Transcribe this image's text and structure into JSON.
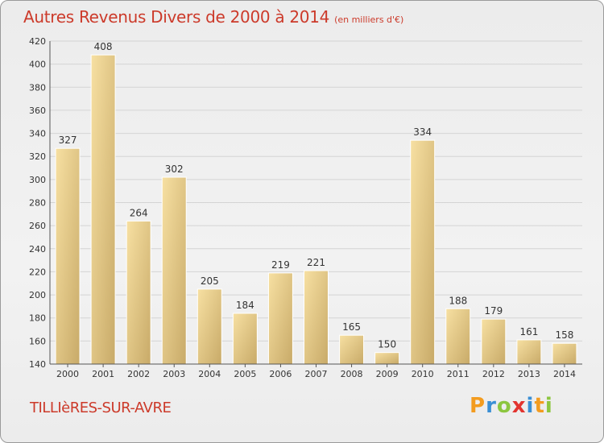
{
  "chart_data": {
    "type": "bar",
    "title": "Autres Revenus Divers de 2000 à 2014",
    "subtitle": "(en milliers d'€)",
    "categories": [
      "2000",
      "2001",
      "2002",
      "2003",
      "2004",
      "2005",
      "2006",
      "2007",
      "2008",
      "2009",
      "2010",
      "2011",
      "2012",
      "2013",
      "2014"
    ],
    "values": [
      327,
      408,
      264,
      302,
      205,
      184,
      219,
      221,
      165,
      150,
      334,
      188,
      179,
      161,
      158
    ],
    "ylim": [
      140,
      420
    ],
    "yticks": [
      140,
      160,
      180,
      200,
      220,
      240,
      260,
      280,
      300,
      320,
      340,
      360,
      380,
      400,
      420
    ],
    "grid": true,
    "bar_color": "#e3c57e"
  },
  "footer": {
    "city": "TILLIèRES-SUR-AVRE",
    "logo_letters": [
      "P",
      "r",
      "o",
      "x",
      "i",
      "t",
      "i"
    ],
    "logo_colors": [
      "#f39c1f",
      "#3a8fd4",
      "#8cc63f",
      "#e2342f",
      "#3a8fd4",
      "#f39c1f",
      "#8cc63f"
    ]
  }
}
